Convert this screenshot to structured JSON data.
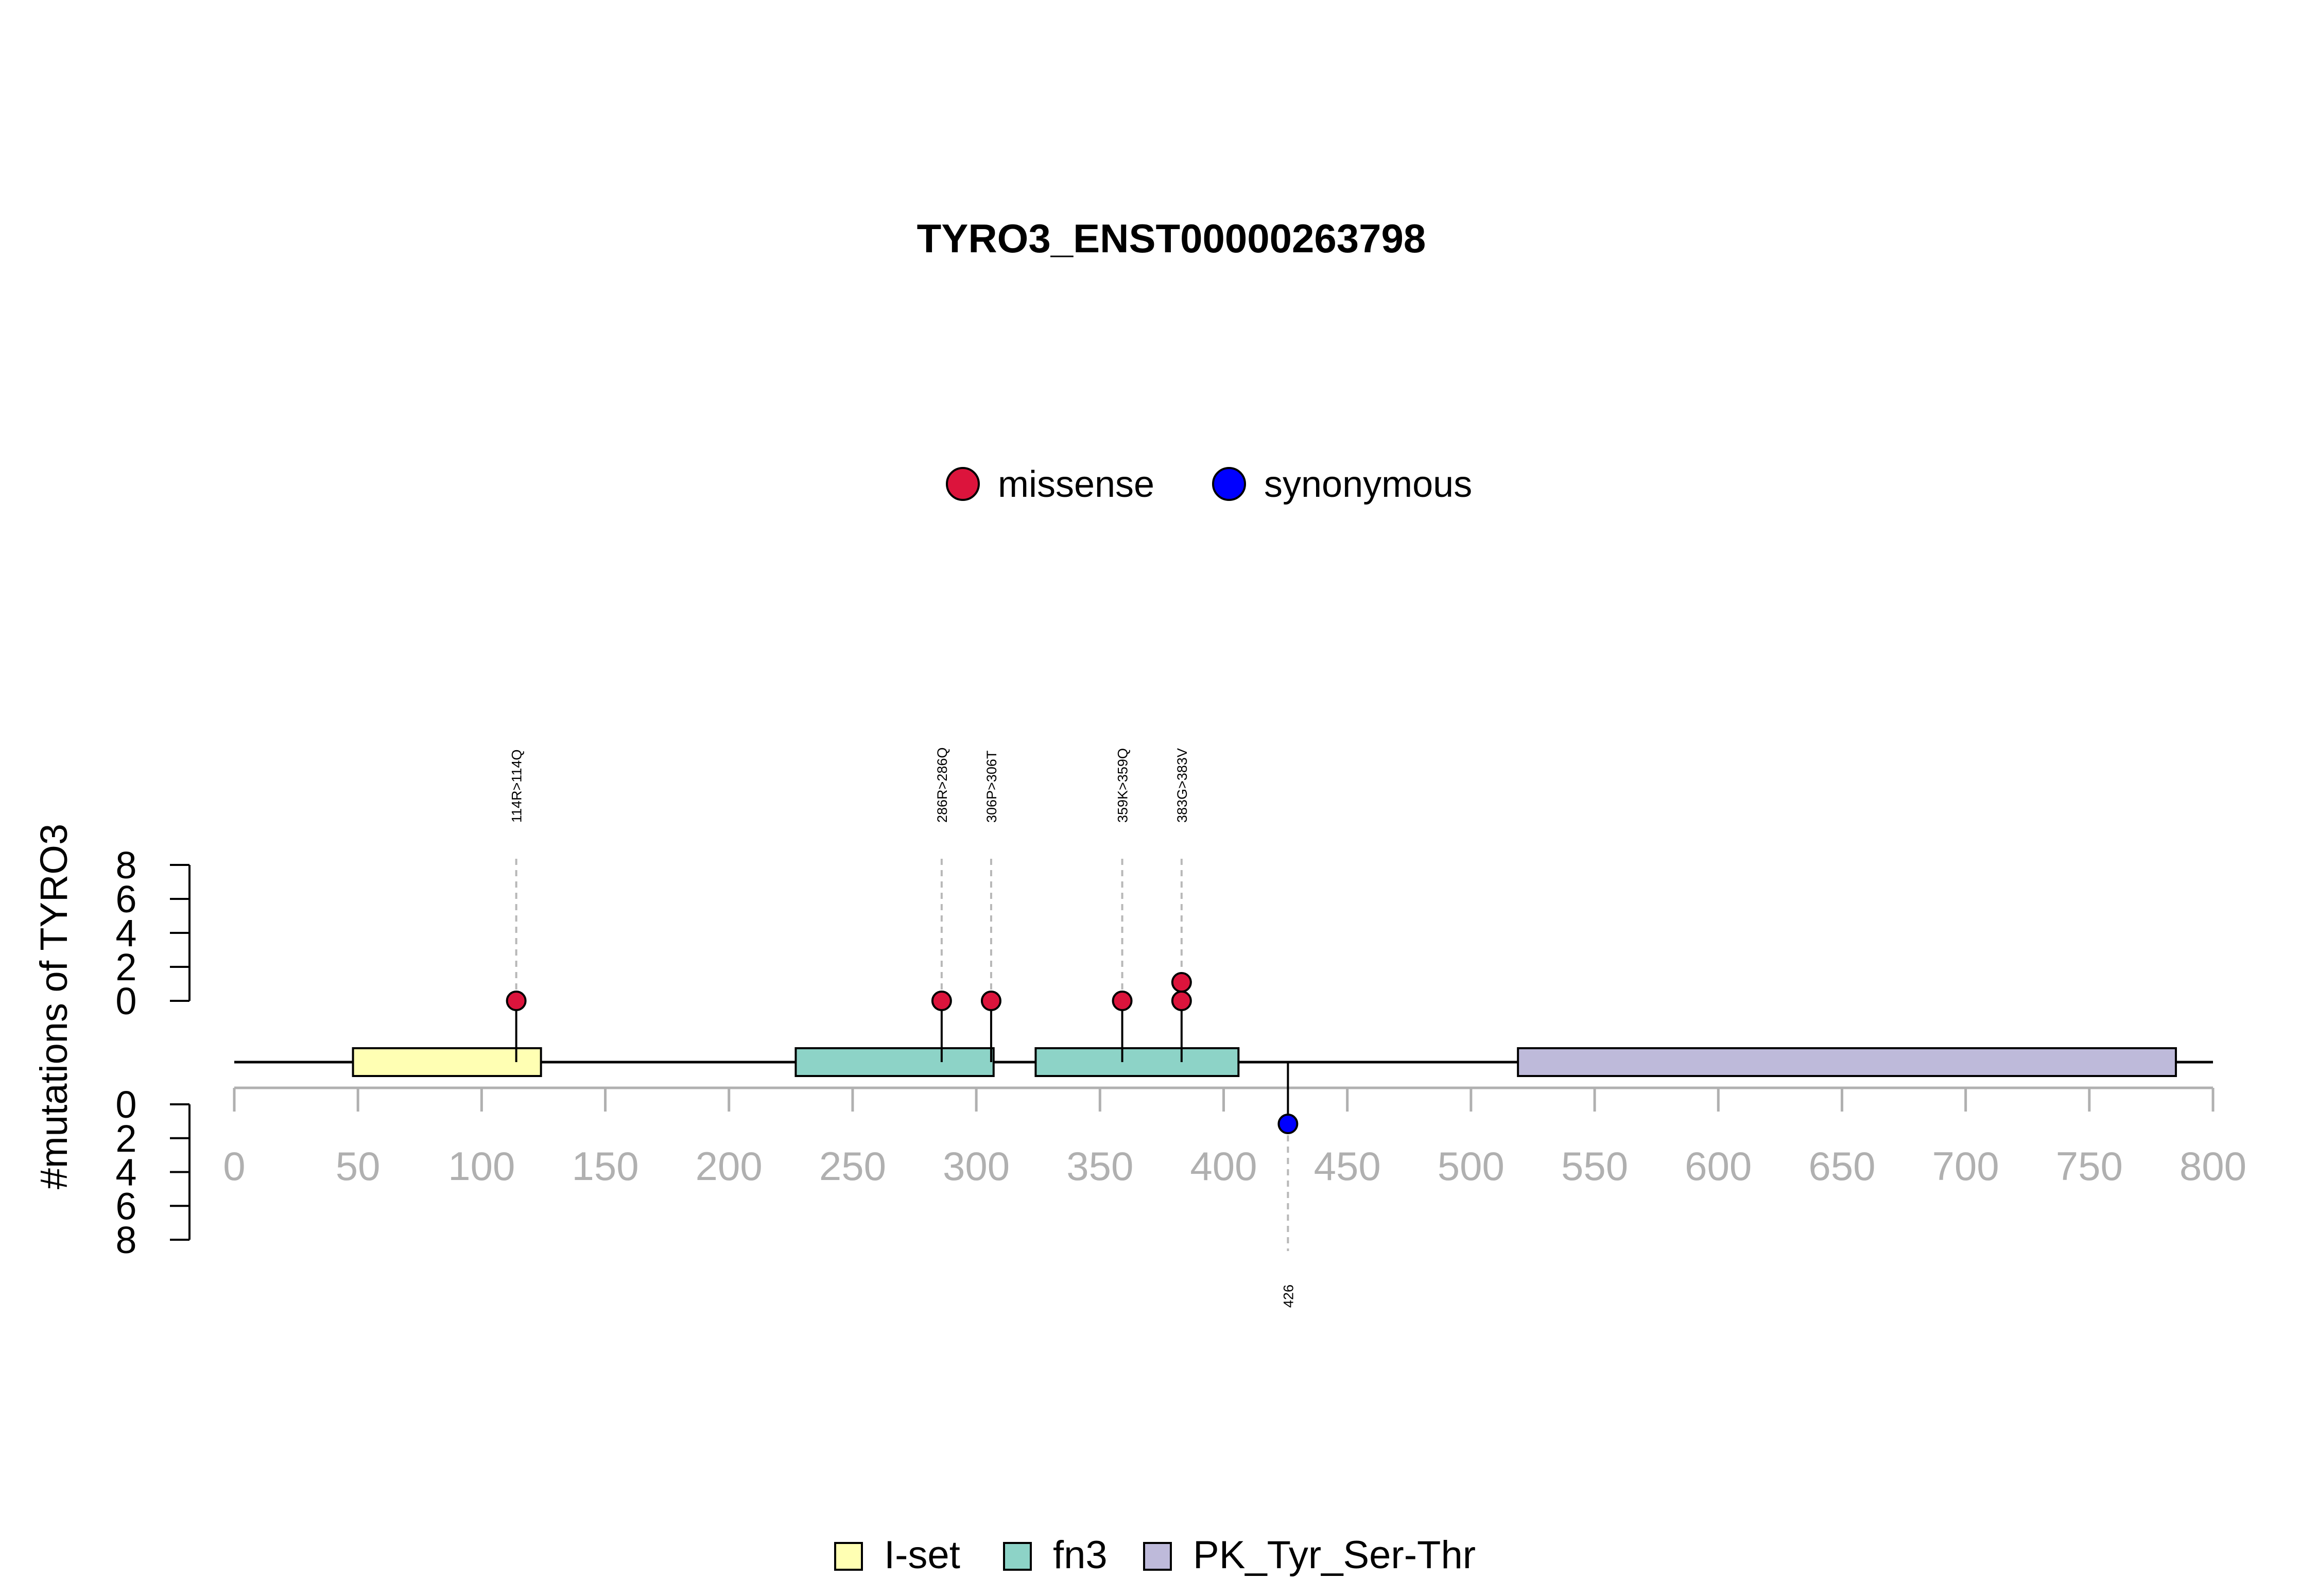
{
  "chart_data": {
    "type": "lollipop",
    "title": "TYRO3_ENST00000263798",
    "ylabel": "#mutations of TYRO3",
    "x_axis": {
      "range": [
        0,
        800
      ],
      "ticks": [
        0,
        50,
        100,
        150,
        200,
        250,
        300,
        350,
        400,
        450,
        500,
        550,
        600,
        650,
        700,
        750,
        800
      ]
    },
    "y_axis_top": {
      "range": [
        0,
        8
      ],
      "ticks": [
        0,
        2,
        4,
        6,
        8
      ]
    },
    "y_axis_bottom": {
      "range": [
        0,
        8
      ],
      "ticks": [
        0,
        2,
        4,
        6,
        8
      ]
    },
    "protein_length": 800,
    "mutation_legend": [
      {
        "name": "missense",
        "color": "#DC143C"
      },
      {
        "name": "synonymous",
        "color": "#0000FF"
      }
    ],
    "domain_legend": [
      {
        "name": "I-set",
        "color": "#FFFFB3"
      },
      {
        "name": "fn3",
        "color": "#8DD3C7"
      },
      {
        "name": "PK_Tyr_Ser-Thr",
        "color": "#BEBADA"
      }
    ],
    "domains": [
      {
        "name": "I-set",
        "start": 48,
        "end": 124,
        "color": "#FFFFB3"
      },
      {
        "name": "fn3",
        "start": 227,
        "end": 307,
        "color": "#8DD3C7"
      },
      {
        "name": "fn3",
        "start": 324,
        "end": 406,
        "color": "#8DD3C7"
      },
      {
        "name": "PK_Tyr_Ser-Thr",
        "start": 519,
        "end": 785,
        "color": "#BEBADA"
      }
    ],
    "mutations_top": [
      {
        "pos": 114,
        "label": "114R>114Q",
        "type": "missense",
        "count": 1
      },
      {
        "pos": 286,
        "label": "286R>286Q",
        "type": "missense",
        "count": 1
      },
      {
        "pos": 306,
        "label": "306P>306T",
        "type": "missense",
        "count": 1
      },
      {
        "pos": 359,
        "label": "359K>359Q",
        "type": "missense",
        "count": 1
      },
      {
        "pos": 383,
        "label": "383G>383V",
        "type": "missense",
        "count": 2
      }
    ],
    "mutations_bottom": [
      {
        "pos": 426,
        "label": "426",
        "type": "synonymous",
        "count": 1
      }
    ]
  }
}
